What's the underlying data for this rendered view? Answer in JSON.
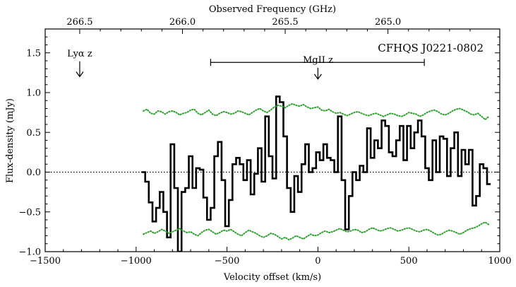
{
  "chart_data": {
    "type": "line",
    "style": "step",
    "title": "CFHQS J0221-0802",
    "xlabel": "Velocity offset (km/s)",
    "ylabel": "Flux-density (mJy)",
    "top_xlabel": "Observed Frequency (GHz)",
    "xlim": [
      -1500,
      1000
    ],
    "ylim": [
      -1.0,
      1.8
    ],
    "x_ticks": [
      -1500,
      -1000,
      -500,
      0,
      500,
      1000
    ],
    "x_tick_labels": [
      "−1500",
      "−1000",
      "−500",
      "0",
      "500",
      "1000"
    ],
    "y_ticks": [
      -1.0,
      -0.5,
      0.0,
      0.5,
      1.0,
      1.5
    ],
    "y_tick_labels": [
      "−1.0",
      "−0.5",
      "0.0",
      "0.5",
      "1.0",
      "1.5"
    ],
    "top_ticks": [
      {
        "label": "266.5",
        "x": -1310
      },
      {
        "label": "266.0",
        "x": -745
      },
      {
        "label": "265.5",
        "x": -180
      },
      {
        "label": "265.0",
        "x": 385
      }
    ],
    "zero_line": true,
    "series": [
      {
        "name": "spectrum",
        "style": "black-steps",
        "x": [
          -960,
          -940,
          -920,
          -900,
          -880,
          -860,
          -840,
          -820,
          -800,
          -780,
          -760,
          -740,
          -720,
          -700,
          -680,
          -660,
          -640,
          -620,
          -600,
          -580,
          -560,
          -540,
          -520,
          -500,
          -480,
          -460,
          -440,
          -420,
          -400,
          -380,
          -360,
          -340,
          -320,
          -300,
          -280,
          -260,
          -240,
          -220,
          -200,
          -180,
          -160,
          -140,
          -120,
          -100,
          -80,
          -60,
          -40,
          -20,
          0,
          20,
          40,
          60,
          80,
          100,
          120,
          140,
          160,
          180,
          200,
          220,
          240,
          260,
          280,
          300,
          320,
          340,
          360,
          380,
          400,
          420,
          440,
          460,
          480,
          500,
          520,
          540,
          560,
          580,
          600,
          620,
          640,
          660,
          680,
          700,
          720,
          740,
          760,
          780,
          800,
          820,
          840,
          860,
          880,
          900,
          920,
          940
        ],
        "y": [
          0.0,
          -0.12,
          -0.38,
          -0.62,
          -0.45,
          -0.25,
          -0.5,
          -0.82,
          0.35,
          -0.2,
          -1.0,
          -0.25,
          -0.2,
          0.2,
          -0.2,
          0.05,
          0.03,
          -0.32,
          -0.6,
          -0.45,
          0.2,
          0.38,
          -0.1,
          -0.68,
          -0.35,
          0.1,
          0.18,
          0.1,
          -0.1,
          0.15,
          -0.28,
          -0.02,
          0.3,
          -0.12,
          0.7,
          0.2,
          -0.08,
          0.95,
          0.88,
          0.45,
          -0.2,
          -0.5,
          -0.05,
          -0.25,
          0.1,
          0.35,
          0.0,
          0.05,
          0.25,
          0.15,
          0.35,
          0.18,
          0.15,
          0.0,
          0.7,
          -0.1,
          -0.72,
          -0.3,
          0.0,
          -0.1,
          0.08,
          0.0,
          0.55,
          0.18,
          0.4,
          0.3,
          0.65,
          0.58,
          0.25,
          0.2,
          0.4,
          0.58,
          0.15,
          0.58,
          0.3,
          0.5,
          0.65,
          0.45,
          0.05,
          -0.1,
          0.4,
          0.0,
          0.45,
          0.42,
          -0.05,
          0.3,
          0.5,
          -0.05,
          0.28,
          0.1,
          0.28,
          -0.42,
          -0.3,
          0.1,
          0.05,
          -0.15
        ]
      },
      {
        "name": "+1 sigma noise",
        "style": "green-dotted",
        "x": [
          -960,
          -940,
          -920,
          -900,
          -880,
          -860,
          -840,
          -820,
          -800,
          -780,
          -760,
          -740,
          -720,
          -700,
          -680,
          -660,
          -640,
          -620,
          -600,
          -580,
          -560,
          -540,
          -520,
          -500,
          -480,
          -460,
          -440,
          -420,
          -400,
          -380,
          -360,
          -340,
          -320,
          -300,
          -280,
          -260,
          -240,
          -220,
          -200,
          -180,
          -160,
          -140,
          -120,
          -100,
          -80,
          -60,
          -40,
          -20,
          0,
          20,
          40,
          60,
          80,
          100,
          120,
          140,
          160,
          180,
          200,
          220,
          240,
          260,
          280,
          300,
          320,
          340,
          360,
          380,
          400,
          420,
          440,
          460,
          480,
          500,
          520,
          540,
          560,
          580,
          600,
          620,
          640,
          660,
          680,
          700,
          720,
          740,
          760,
          780,
          800,
          820,
          840,
          860,
          880,
          900,
          920,
          940
        ],
        "y": [
          0.77,
          0.79,
          0.74,
          0.73,
          0.77,
          0.76,
          0.73,
          0.76,
          0.77,
          0.75,
          0.72,
          0.74,
          0.75,
          0.78,
          0.79,
          0.74,
          0.72,
          0.75,
          0.78,
          0.73,
          0.71,
          0.74,
          0.76,
          0.75,
          0.73,
          0.74,
          0.77,
          0.76,
          0.74,
          0.72,
          0.75,
          0.78,
          0.8,
          0.77,
          0.75,
          0.78,
          0.82,
          0.84,
          0.83,
          0.81,
          0.84,
          0.86,
          0.84,
          0.83,
          0.85,
          0.82,
          0.8,
          0.81,
          0.82,
          0.78,
          0.77,
          0.79,
          0.76,
          0.74,
          0.75,
          0.73,
          0.71,
          0.73,
          0.75,
          0.76,
          0.74,
          0.72,
          0.71,
          0.73,
          0.74,
          0.72,
          0.7,
          0.72,
          0.74,
          0.73,
          0.71,
          0.7,
          0.72,
          0.75,
          0.74,
          0.73,
          0.7,
          0.72,
          0.75,
          0.77,
          0.78,
          0.76,
          0.73,
          0.72,
          0.74,
          0.77,
          0.79,
          0.8,
          0.78,
          0.76,
          0.73,
          0.72,
          0.74,
          0.7,
          0.66,
          0.7
        ]
      },
      {
        "name": "-1 sigma noise",
        "style": "green-dotted",
        "x": [
          -960,
          -940,
          -920,
          -900,
          -880,
          -860,
          -840,
          -820,
          -800,
          -780,
          -760,
          -740,
          -720,
          -700,
          -680,
          -660,
          -640,
          -620,
          -600,
          -580,
          -560,
          -540,
          -520,
          -500,
          -480,
          -460,
          -440,
          -420,
          -400,
          -380,
          -360,
          -340,
          -320,
          -300,
          -280,
          -260,
          -240,
          -220,
          -200,
          -180,
          -160,
          -140,
          -120,
          -100,
          -80,
          -60,
          -40,
          -20,
          0,
          20,
          40,
          60,
          80,
          100,
          120,
          140,
          160,
          180,
          200,
          220,
          240,
          260,
          280,
          300,
          320,
          340,
          360,
          380,
          400,
          420,
          440,
          460,
          480,
          500,
          520,
          540,
          560,
          580,
          600,
          620,
          640,
          660,
          680,
          700,
          720,
          740,
          760,
          780,
          800,
          820,
          840,
          860,
          880,
          900,
          920,
          940
        ],
        "y": [
          -0.78,
          -0.76,
          -0.74,
          -0.77,
          -0.75,
          -0.72,
          -0.74,
          -0.77,
          -0.75,
          -0.73,
          -0.71,
          -0.74,
          -0.76,
          -0.75,
          -0.78,
          -0.8,
          -0.76,
          -0.73,
          -0.72,
          -0.75,
          -0.78,
          -0.76,
          -0.73,
          -0.74,
          -0.72,
          -0.75,
          -0.78,
          -0.8,
          -0.76,
          -0.73,
          -0.75,
          -0.77,
          -0.8,
          -0.82,
          -0.8,
          -0.77,
          -0.78,
          -0.81,
          -0.84,
          -0.82,
          -0.85,
          -0.83,
          -0.8,
          -0.82,
          -0.84,
          -0.81,
          -0.78,
          -0.8,
          -0.79,
          -0.76,
          -0.74,
          -0.76,
          -0.75,
          -0.73,
          -0.71,
          -0.73,
          -0.75,
          -0.74,
          -0.72,
          -0.73,
          -0.76,
          -0.75,
          -0.72,
          -0.7,
          -0.72,
          -0.74,
          -0.73,
          -0.71,
          -0.7,
          -0.72,
          -0.74,
          -0.73,
          -0.71,
          -0.7,
          -0.72,
          -0.74,
          -0.75,
          -0.73,
          -0.72,
          -0.74,
          -0.77,
          -0.79,
          -0.78,
          -0.75,
          -0.73,
          -0.74,
          -0.76,
          -0.78,
          -0.76,
          -0.73,
          -0.71,
          -0.7,
          -0.68,
          -0.65,
          -0.63,
          -0.66
        ]
      }
    ],
    "annotations": [
      {
        "name": "lya-marker",
        "text": "Lyα z",
        "x": -1310,
        "y": 1.5,
        "arrow_to_y": 1.2
      },
      {
        "name": "mgii-marker",
        "text": "MgII z",
        "x": 0,
        "y": 1.42,
        "arrow_to_y": 1.17,
        "range": [
          -590,
          585
        ],
        "range_y": 1.38
      }
    ],
    "colors": {
      "spectrum": "#000000",
      "noise": "#2ca02c",
      "zero_line": "#000000"
    }
  }
}
